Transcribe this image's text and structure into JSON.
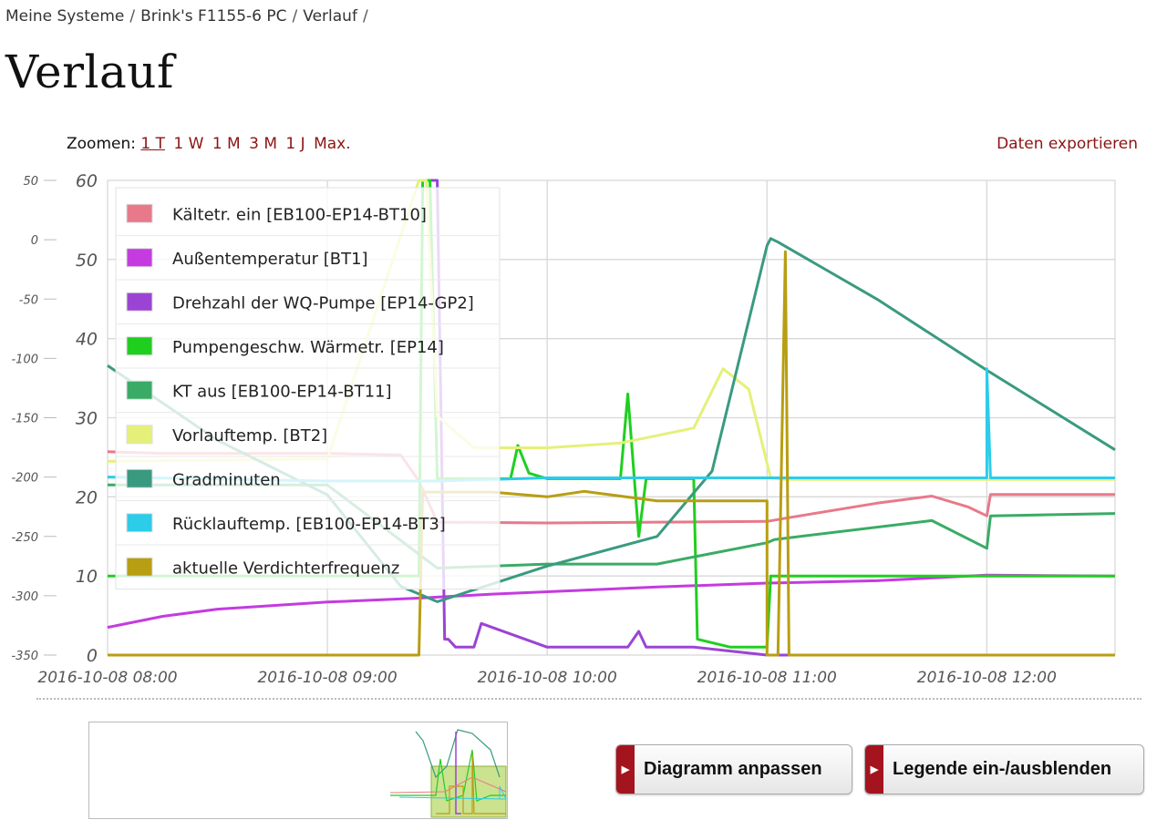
{
  "breadcrumb": [
    "Meine Systeme",
    "Brink's F1155-6 PC",
    "Verlauf"
  ],
  "breadcrumb_separator": "/",
  "page_title": "Verlauf",
  "zoom": {
    "label": "Zoomen:",
    "options": [
      "1 T",
      "1 W",
      "1 M",
      "3 M",
      "1 J",
      "Max."
    ],
    "active": "1 T"
  },
  "export_label": "Daten exportieren",
  "buttons": {
    "customize": "Diagramm anpassen",
    "legend_toggle": "Legende ein-/ausblenden"
  },
  "colors": {
    "link": "#8b1414",
    "button_accent": "#a4141e"
  },
  "chart_data": {
    "type": "line",
    "x_axis": {
      "type": "datetime",
      "range": [
        "2016-10-08 08:00",
        "2016-10-08 12:35"
      ],
      "tick_labels": [
        "2016-10-08 08:00",
        "2016-10-08 09:00",
        "2016-10-08 10:00",
        "2016-10-08 11:00",
        "2016-10-08 12:00"
      ]
    },
    "y_axes": [
      {
        "side": "left-outer",
        "range": [
          -350,
          50
        ],
        "tick_labels": [
          "50",
          "0",
          "-50",
          "-100",
          "-150",
          "-200",
          "-250",
          "-300",
          "-350"
        ]
      },
      {
        "side": "left-inner",
        "range": [
          0,
          60
        ],
        "tick_labels": [
          "60",
          "50",
          "40",
          "30",
          "20",
          "10",
          "0"
        ]
      }
    ],
    "grid": true,
    "legend_position": "top-left",
    "series": [
      {
        "name": "Kältetr. ein [EB100-EP14-BT10]",
        "color": "#e8798a",
        "axis": 1,
        "x": [
          "08:00",
          "08:15",
          "09:00",
          "09:20",
          "09:25",
          "09:30",
          "10:00",
          "10:30",
          "11:00",
          "11:05",
          "11:30",
          "11:45",
          "11:55",
          "12:00",
          "12:01",
          "12:35"
        ],
        "y": [
          25.7,
          25.5,
          25.5,
          25.3,
          22.0,
          16.8,
          16.7,
          16.8,
          16.9,
          17.3,
          19.2,
          20.1,
          18.7,
          17.6,
          20.3,
          20.3
        ]
      },
      {
        "name": "Außentemperatur [BT1]",
        "color": "#c43be0",
        "axis": 1,
        "x": [
          "08:00",
          "08:15",
          "08:30",
          "09:00",
          "09:25",
          "09:45",
          "10:00",
          "10:30",
          "11:00",
          "11:30",
          "12:00",
          "12:35"
        ],
        "y": [
          3.5,
          4.9,
          5.8,
          6.7,
          7.2,
          7.7,
          8.0,
          8.6,
          9.1,
          9.4,
          10.1,
          10.0
        ]
      },
      {
        "name": "Drehzahl der WQ-Pumpe [EP14-GP2]",
        "color": "#9b44d4",
        "axis": 1,
        "x": [
          "09:26",
          "09:30",
          "09:32",
          "09:33",
          "09:35",
          "09:38",
          "09:40",
          "09:42",
          "10:00",
          "10:10",
          "10:22",
          "10:25",
          "10:27",
          "10:40",
          "11:00",
          "11:01",
          "12:35"
        ],
        "y": [
          60,
          60,
          2,
          2,
          1,
          1,
          1,
          4,
          1,
          1,
          1,
          3,
          1,
          1,
          0,
          0,
          0
        ]
      },
      {
        "name": "Pumpengeschw. Wärmetr. [EP14]",
        "color": "#1fcf1f",
        "axis": 1,
        "x": [
          "08:00",
          "09:25",
          "09:26",
          "09:28",
          "09:30",
          "09:45",
          "09:50",
          "09:52",
          "09:55",
          "10:00",
          "10:20",
          "10:22",
          "10:25",
          "10:27",
          "10:40",
          "10:41",
          "10:50",
          "10:52",
          "11:00",
          "11:01",
          "12:35"
        ],
        "y": [
          10,
          10,
          60,
          60,
          22.3,
          22.3,
          22.3,
          26.5,
          23,
          22.3,
          22.3,
          33,
          15,
          22.3,
          22.3,
          2.0,
          1.0,
          1.0,
          1.0,
          10,
          10
        ]
      },
      {
        "name": "KT aus [EB100-EP14-BT11]",
        "color": "#3aab66",
        "axis": 1,
        "x": [
          "08:00",
          "09:00",
          "09:30",
          "10:00",
          "10:30",
          "11:00",
          "11:02",
          "11:45",
          "12:00",
          "12:01",
          "12:35"
        ],
        "y": [
          21.5,
          21.5,
          11,
          11.5,
          11.5,
          14.2,
          14.6,
          17.0,
          13.5,
          17.6,
          17.9
        ]
      },
      {
        "name": "Vorlauftemp. [BT2]",
        "color": "#e5f07a",
        "axis": 1,
        "x": [
          "08:00",
          "09:00",
          "09:25",
          "09:27",
          "09:30",
          "09:40",
          "10:00",
          "10:20",
          "10:40",
          "10:48",
          "10:55",
          "11:01",
          "11:05",
          "12:35"
        ],
        "y": [
          24.5,
          24.8,
          60,
          60,
          30.2,
          26.2,
          26.2,
          26.8,
          28.7,
          36.2,
          33.6,
          22.4,
          22.2,
          22.2
        ]
      },
      {
        "name": "Gradminuten",
        "color": "#3a9a80",
        "axis": 0,
        "x": [
          "08:00",
          "08:30",
          "09:00",
          "09:20",
          "09:30",
          "09:45",
          "10:00",
          "10:30",
          "10:45",
          "11:00",
          "11:01",
          "11:03",
          "11:30",
          "12:00",
          "12:35"
        ],
        "y": [
          -106,
          -169,
          -215,
          -292,
          -305,
          -290,
          -275,
          -250,
          -195,
          -5,
          1,
          -2,
          -50,
          -110,
          -177
        ]
      },
      {
        "name": "Rücklauftemp. [EB100-EP14-BT3]",
        "color": "#2dcce8",
        "axis": 1,
        "x": [
          "08:00",
          "09:00",
          "09:30",
          "10:00",
          "10:30",
          "11:00",
          "12:00",
          "12:00",
          "12:01",
          "12:35"
        ],
        "y": [
          22.5,
          22.0,
          22.0,
          22.4,
          22.4,
          22.4,
          22.4,
          36.2,
          22.4,
          22.4
        ]
      },
      {
        "name": "aktuelle Verdichterfrequenz",
        "color": "#b89e12",
        "axis": 1,
        "x": [
          "08:00",
          "09:25",
          "09:26",
          "09:30",
          "09:45",
          "10:00",
          "10:10",
          "10:20",
          "10:30",
          "10:41",
          "11:00",
          "11:00",
          "11:03",
          "11:05",
          "11:06",
          "11:08",
          "12:35"
        ],
        "y": [
          0,
          0,
          20.6,
          20.6,
          20.6,
          20.0,
          20.7,
          20.1,
          19.5,
          19.5,
          19.5,
          0,
          0,
          51,
          0,
          0,
          0
        ]
      }
    ]
  }
}
